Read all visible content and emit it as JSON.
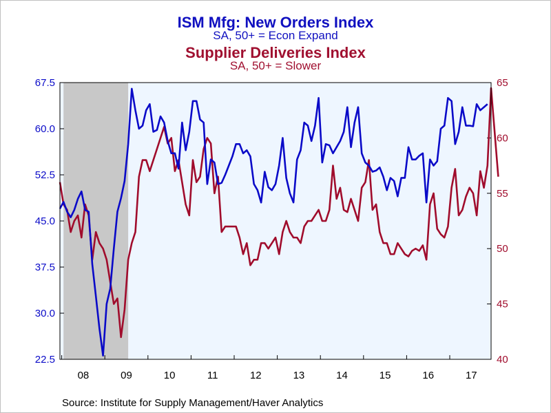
{
  "titles": {
    "primary": "ISM Mfg: New Orders Index",
    "primary_sub": "SA, 50+ = Econ Expand",
    "secondary": "Supplier Deliveries Index",
    "secondary_sub": "SA, 50+ = Slower"
  },
  "source": "Source:  Institute for Supply Management/Haver Analytics",
  "colors": {
    "new_orders": "#0a0ac8",
    "supplier_deliveries": "#a00c2c",
    "plot_background": "#eef6ff",
    "recession_shade": "#c8c8c8"
  },
  "chart_data": {
    "type": "line",
    "frequency": "monthly",
    "x_tick_labels": [
      "08",
      "09",
      "10",
      "11",
      "12",
      "13",
      "14",
      "15",
      "16",
      "17"
    ],
    "recession": {
      "start": "2008-01",
      "end": "2009-06"
    },
    "left_axis": {
      "ylim": [
        22.5,
        67.5
      ],
      "ticks": [
        "22.5",
        "30.0",
        "37.5",
        "45.0",
        "52.5",
        "60.0",
        "67.5"
      ]
    },
    "right_axis": {
      "ylim": [
        40,
        65
      ],
      "ticks": [
        "40",
        "45",
        "50",
        "55",
        "60",
        "65"
      ]
    },
    "grid": false,
    "series": [
      {
        "axis": "left",
        "start": "2007-12",
        "values": [
          47.0,
          48.1,
          46.5,
          45.6,
          46.8,
          48.6,
          49.8,
          46.8,
          46.5,
          38.0,
          32.8,
          27.5,
          23.1,
          31.5,
          34.0,
          40.5,
          46.5,
          48.7,
          51.5,
          57.5,
          66.5,
          63.0,
          60.0,
          60.5,
          63.0,
          64.0,
          59.5,
          59.8,
          62.0,
          61.0,
          58.0,
          56.0,
          56.0,
          53.5,
          61.0,
          56.5,
          59.5,
          64.5,
          64.5,
          61.5,
          61.0,
          51.0,
          55.0,
          54.5,
          51.0,
          51.2,
          52.5,
          54.0,
          55.5,
          57.5,
          57.5,
          56.0,
          56.5,
          55.5,
          51.0,
          50.0,
          48.0,
          53.0,
          50.5,
          50.0,
          51.0,
          54.0,
          58.5,
          52.0,
          49.5,
          48.0,
          55.0,
          56.5,
          61.0,
          60.5,
          58.0,
          60.5,
          65.0,
          54.5,
          57.5,
          57.3,
          56.0,
          57.0,
          58.0,
          59.5,
          63.5,
          57.0,
          61.0,
          63.5,
          56.0,
          54.5,
          54.0,
          53.0,
          53.2,
          53.7,
          52.2,
          50.0,
          52.0,
          51.5,
          49.0,
          52.0,
          52.0,
          57.0,
          55.0,
          55.0,
          55.6,
          56.0,
          48.0,
          55.0,
          54.0,
          54.7,
          60.0,
          60.5,
          65.0,
          64.5,
          57.5,
          59.5,
          63.5,
          60.5,
          60.5,
          60.4,
          64.0,
          63.0,
          63.5,
          64.0
        ]
      },
      {
        "axis": "right",
        "start": "2007-12",
        "values": [
          56.0,
          54.0,
          53.5,
          51.5,
          52.5,
          53.0,
          51.0,
          54.0,
          53.0,
          49.0,
          51.5,
          50.5,
          50.0,
          49.0,
          47.0,
          45.0,
          45.5,
          42.0,
          44.5,
          49.0,
          50.5,
          51.5,
          56.5,
          58.0,
          58.0,
          57.0,
          58.0,
          59.0,
          60.0,
          61.0,
          59.5,
          60.0,
          57.0,
          58.0,
          56.0,
          54.0,
          53.0,
          58.0,
          56.0,
          56.5,
          59.0,
          60.0,
          59.5,
          55.0,
          56.5,
          51.5,
          52.0,
          52.0,
          52.0,
          52.0,
          51.0,
          49.5,
          50.5,
          48.5,
          49.0,
          49.0,
          50.5,
          50.5,
          50.0,
          50.5,
          51.0,
          49.5,
          51.5,
          52.5,
          51.5,
          51.0,
          51.0,
          50.5,
          52.0,
          52.5,
          52.5,
          53.0,
          53.5,
          52.5,
          52.5,
          53.5,
          57.5,
          54.5,
          55.5,
          53.5,
          53.3,
          54.5,
          53.5,
          52.5,
          55.5,
          56.0,
          58.0,
          53.5,
          54.0,
          51.5,
          50.5,
          50.5,
          49.5,
          49.5,
          50.5,
          50.0,
          49.5,
          49.3,
          49.8,
          50.0,
          49.8,
          50.3,
          49.0,
          54.0,
          55.0,
          51.8,
          51.3,
          51.0,
          52.0,
          55.5,
          57.2,
          53.0,
          53.5,
          54.7,
          55.5,
          55.0,
          53.0,
          57.0,
          55.5,
          57.5,
          64.5,
          60.5,
          56.5
        ]
      }
    ]
  }
}
